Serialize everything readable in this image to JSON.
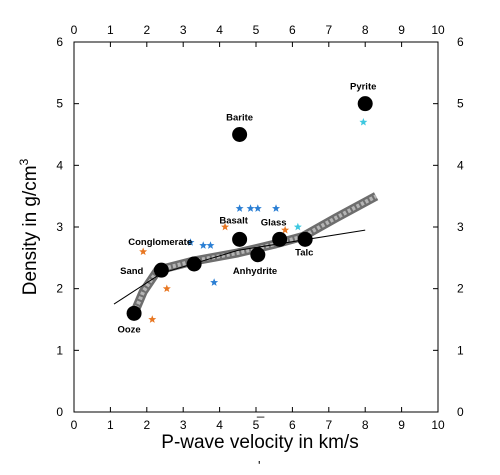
{
  "chart_data": {
    "type": "scatter",
    "xlabel": "P-wave velocity in km/s",
    "ylabel": "Density in g/cm",
    "ylabel_superscript": "3",
    "xlim": [
      0,
      10
    ],
    "ylim": [
      0,
      6
    ],
    "x_ticks": [
      "0",
      "1",
      "2",
      "3",
      "4",
      "5",
      "6",
      "7",
      "8",
      "9",
      "10"
    ],
    "y_ticks": [
      "0",
      "1",
      "2",
      "3",
      "4",
      "5",
      "6"
    ],
    "grid": false,
    "mirrored_axes": true,
    "series": [
      {
        "marker": "large-black-circle",
        "color": "#000000",
        "points": [
          {
            "label": "Ooze",
            "x": 1.65,
            "y": 1.6
          },
          {
            "label": "Sand",
            "x": 2.4,
            "y": 2.3
          },
          {
            "label": "Conglomerate",
            "x": 3.3,
            "y": 2.4
          },
          {
            "label": "Basalt",
            "x": 4.55,
            "y": 2.8
          },
          {
            "label": "Anhydrite",
            "x": 5.05,
            "y": 2.55
          },
          {
            "label": "Glass",
            "x": 5.65,
            "y": 2.8
          },
          {
            "label": "Talc",
            "x": 6.35,
            "y": 2.8
          },
          {
            "label": "Barite",
            "x": 4.55,
            "y": 4.5
          },
          {
            "label": "Pyrite",
            "x": 8.0,
            "y": 5.0
          }
        ]
      },
      {
        "marker": "star",
        "color": "#e87722",
        "points": [
          {
            "x": 1.9,
            "y": 2.6
          },
          {
            "x": 2.15,
            "y": 1.5
          },
          {
            "x": 2.55,
            "y": 2.0
          },
          {
            "x": 4.15,
            "y": 3.0
          },
          {
            "x": 5.8,
            "y": 2.95
          }
        ]
      },
      {
        "marker": "star",
        "color": "#2b7fd4",
        "points": [
          {
            "x": 3.2,
            "y": 2.75
          },
          {
            "x": 3.55,
            "y": 2.7
          },
          {
            "x": 3.75,
            "y": 2.7
          },
          {
            "x": 4.55,
            "y": 3.3
          },
          {
            "x": 4.85,
            "y": 3.3
          },
          {
            "x": 5.05,
            "y": 3.3
          },
          {
            "x": 5.55,
            "y": 3.3
          },
          {
            "x": 3.85,
            "y": 2.1
          }
        ]
      },
      {
        "marker": "star",
        "color": "#3ec8e0",
        "points": [
          {
            "x": 6.15,
            "y": 3.0
          },
          {
            "x": 7.95,
            "y": 4.7
          }
        ]
      }
    ],
    "curves": [
      {
        "style": "thick-grey-band",
        "color": "#8a8a8a",
        "points": [
          [
            1.65,
            1.6
          ],
          [
            1.9,
            1.95
          ],
          [
            2.3,
            2.3
          ],
          [
            3.3,
            2.45
          ],
          [
            4.5,
            2.58
          ],
          [
            5.5,
            2.72
          ],
          [
            6.3,
            2.85
          ],
          [
            7.2,
            3.15
          ],
          [
            8.3,
            3.5
          ]
        ]
      },
      {
        "style": "thin-black-line",
        "color": "#000000",
        "points": [
          [
            1.1,
            1.75
          ],
          [
            2.4,
            2.25
          ],
          [
            4.5,
            2.62
          ],
          [
            8.0,
            2.95
          ]
        ]
      }
    ],
    "annotations": [
      "_",
      "'"
    ]
  }
}
